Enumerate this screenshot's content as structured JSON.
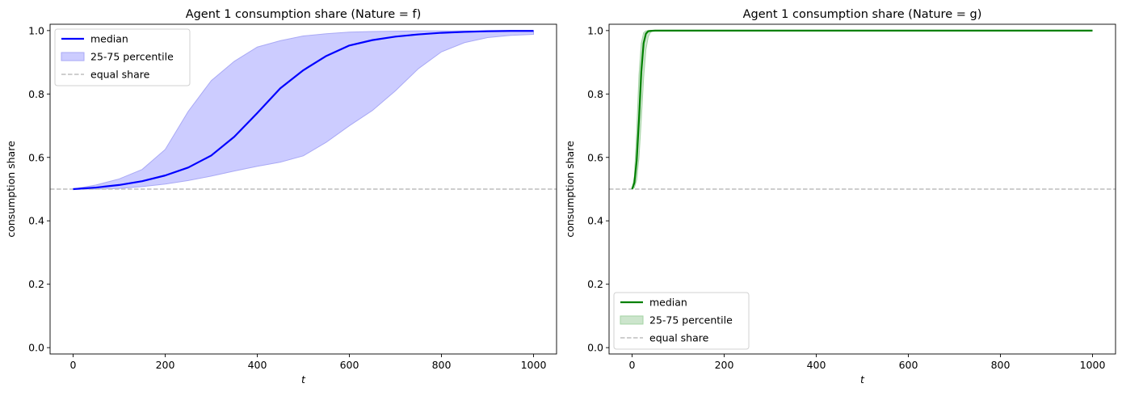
{
  "chart_data": [
    {
      "type": "line",
      "title": "Agent 1 consumption share (Nature = f)",
      "xlabel": "t",
      "ylabel": "consumption share",
      "xlim": [
        -50,
        1050
      ],
      "ylim": [
        -0.02,
        1.02
      ],
      "xticks": [
        0,
        200,
        400,
        600,
        800,
        1000
      ],
      "yticks": [
        0.0,
        0.2,
        0.4,
        0.6,
        0.8,
        1.0
      ],
      "xtick_labels": [
        "0",
        "200",
        "400",
        "600",
        "800",
        "1000"
      ],
      "ytick_labels": [
        "0.0",
        "0.2",
        "0.4",
        "0.6",
        "0.8",
        "1.0"
      ],
      "legend_position": "top-left",
      "colors": {
        "median": "#0000ff",
        "band": "#ccccff",
        "band_edge": "#a9a9f5",
        "equal": "#bdbdbd"
      },
      "series": [
        {
          "name": "median",
          "kind": "line",
          "x": [
            0,
            50,
            100,
            150,
            200,
            250,
            300,
            350,
            400,
            450,
            500,
            550,
            600,
            650,
            700,
            750,
            800,
            850,
            900,
            950,
            1000
          ],
          "y": [
            0.5,
            0.505,
            0.513,
            0.525,
            0.543,
            0.568,
            0.606,
            0.665,
            0.74,
            0.818,
            0.875,
            0.92,
            0.953,
            0.97,
            0.981,
            0.988,
            0.993,
            0.996,
            0.998,
            0.999,
            0.999
          ]
        },
        {
          "name": "25-75 percentile",
          "kind": "band",
          "x": [
            0,
            50,
            100,
            150,
            200,
            250,
            300,
            350,
            400,
            450,
            500,
            550,
            600,
            650,
            700,
            750,
            800,
            850,
            900,
            950,
            1000
          ],
          "lower": [
            0.5,
            0.5,
            0.502,
            0.508,
            0.516,
            0.527,
            0.541,
            0.557,
            0.572,
            0.585,
            0.605,
            0.648,
            0.7,
            0.748,
            0.81,
            0.88,
            0.933,
            0.962,
            0.978,
            0.985,
            0.988
          ],
          "upper": [
            0.5,
            0.513,
            0.532,
            0.562,
            0.625,
            0.745,
            0.842,
            0.903,
            0.948,
            0.968,
            0.983,
            0.99,
            0.995,
            0.997,
            0.998,
            0.999,
            0.999,
            0.999,
            0.999,
            0.999,
            0.999
          ]
        },
        {
          "name": "equal share",
          "kind": "hline",
          "y": 0.5
        }
      ]
    },
    {
      "type": "line",
      "title": "Agent 1 consumption share (Nature = g)",
      "xlabel": "t",
      "ylabel": "consumption share",
      "xlim": [
        -50,
        1050
      ],
      "ylim": [
        -0.02,
        1.02
      ],
      "xticks": [
        0,
        200,
        400,
        600,
        800,
        1000
      ],
      "yticks": [
        0.0,
        0.2,
        0.4,
        0.6,
        0.8,
        1.0
      ],
      "xtick_labels": [
        "0",
        "200",
        "400",
        "600",
        "800",
        "1000"
      ],
      "ytick_labels": [
        "0.0",
        "0.2",
        "0.4",
        "0.6",
        "0.8",
        "1.0"
      ],
      "legend_position": "bottom-left",
      "colors": {
        "median": "#008000",
        "band": "#cce5cc",
        "band_edge": "#a3d3a3",
        "equal": "#bdbdbd"
      },
      "series": [
        {
          "name": "median",
          "kind": "line",
          "x": [
            0,
            5,
            10,
            15,
            20,
            25,
            30,
            35,
            40,
            50,
            100,
            200,
            400,
            600,
            800,
            1000
          ],
          "y": [
            0.5,
            0.52,
            0.59,
            0.72,
            0.87,
            0.96,
            0.99,
            0.998,
            0.999,
            1.0,
            1.0,
            1.0,
            1.0,
            1.0,
            1.0,
            1.0
          ]
        },
        {
          "name": "25-75 percentile",
          "kind": "band",
          "x": [
            0,
            5,
            10,
            15,
            20,
            25,
            30,
            35,
            40,
            45,
            50,
            100,
            200,
            400,
            600,
            800,
            1000
          ],
          "lower": [
            0.5,
            0.505,
            0.53,
            0.6,
            0.72,
            0.85,
            0.94,
            0.98,
            0.995,
            0.999,
            1.0,
            1.0,
            1.0,
            1.0,
            1.0,
            1.0,
            1.0
          ],
          "upper": [
            0.5,
            0.54,
            0.68,
            0.86,
            0.96,
            0.993,
            0.999,
            1.0,
            1.0,
            1.0,
            1.0,
            1.0,
            1.0,
            1.0,
            1.0,
            1.0,
            1.0
          ]
        },
        {
          "name": "equal share",
          "kind": "hline",
          "y": 0.5
        }
      ]
    }
  ]
}
